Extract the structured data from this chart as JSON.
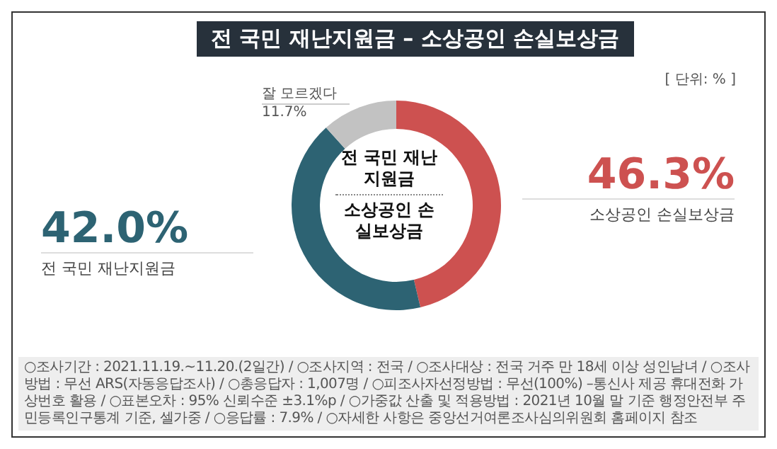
{
  "chart_data": {
    "type": "donut",
    "title": "전 국민 재난지원금 – 소상공인 손실보상금",
    "subtitle": "[ 단위: % ]",
    "categories": [
      "소상공인 손실보상금",
      "전 국민 재난지원금",
      "잘 모르겠다"
    ],
    "values": [
      46.3,
      42.0,
      11.7
    ],
    "colors": [
      "#cd5150",
      "#2d6373",
      "#c2c2c2"
    ],
    "value_labels": [
      "46.3%",
      "42.0%",
      "11.7%"
    ],
    "legend": false,
    "annotations": [
      "전 국민 재난지원금",
      "소상공인 손실보상금",
      "○조사기간 : 2021.11.19.~11.20.(2일간) /",
      "○조사지역 : 전국 /",
      "○조사대상 : 전국 거주 만 18세 이상 성인남녀 /",
      "○조사방법 : 무선 ARS(자동응답조사) /",
      "○총응답자 : 1,007명 /",
      "○피조사자선정방법 : 무선(100%) –통신사 제공 휴대전화 가상번호 활용 /",
      "○표본오차 : 95% 신뢰수준 ±3.1%p /",
      "○가중값 산출 및 적용방법 : 2021년 10월 말 기준 행정안전부 주민등록인구통계 기준, 셀가중 /",
      "○응답률 : 7.9% /",
      "○자세한 사항은 중앙선거여론조사심의위원회 홈페이지 참조"
    ]
  }
}
